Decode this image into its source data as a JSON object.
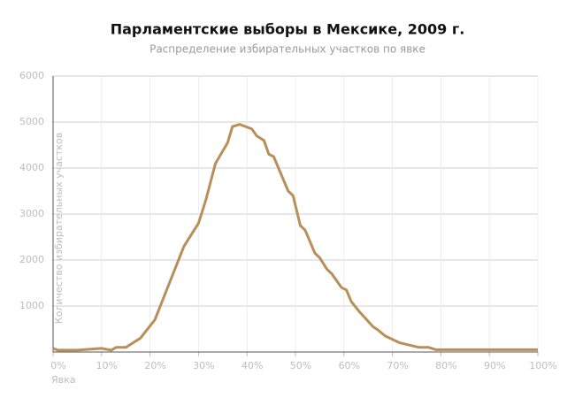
{
  "chart_data": {
    "type": "line",
    "title": "Парламентские выборы в Мексике, 2009 г.",
    "subtitle": "Распределение избирательных участков по явке",
    "x_label": "Явка",
    "y_label": "Количество избирательных участков",
    "x": [
      0,
      1,
      5,
      10,
      12,
      13,
      15,
      18,
      21,
      24,
      27,
      30,
      31.5,
      33.5,
      36,
      37,
      38.5,
      41,
      42,
      43.5,
      44.5,
      45.5,
      48.5,
      49.5,
      51,
      52,
      54,
      55,
      56.5,
      57.5,
      59.5,
      60.5,
      61.5,
      63,
      66,
      67,
      68.5,
      71.5,
      73.5,
      75.5,
      77.5,
      79,
      83,
      100
    ],
    "series": [
      {
        "name": "Количество избирательных участков",
        "color": "#b98f59",
        "values": [
          80,
          40,
          40,
          80,
          40,
          100,
          100,
          300,
          700,
          1500,
          2300,
          2800,
          3300,
          4100,
          4550,
          4900,
          4950,
          4850,
          4700,
          4600,
          4300,
          4250,
          3500,
          3400,
          2750,
          2650,
          2150,
          2050,
          1800,
          1700,
          1400,
          1350,
          1100,
          900,
          550,
          480,
          350,
          200,
          150,
          100,
          100,
          50,
          50,
          50
        ]
      }
    ],
    "xlim": [
      0,
      100
    ],
    "xticks": [
      {
        "value": 0,
        "label": "0%"
      },
      {
        "value": 10,
        "label": "10%"
      },
      {
        "value": 20,
        "label": "20%"
      },
      {
        "value": 30,
        "label": "30%"
      },
      {
        "value": 40,
        "label": "40%"
      },
      {
        "value": 50,
        "label": "50%"
      },
      {
        "value": 60,
        "label": "60%"
      },
      {
        "value": 70,
        "label": "70%"
      },
      {
        "value": 80,
        "label": "80%"
      },
      {
        "value": 90,
        "label": "90%"
      },
      {
        "value": 100,
        "label": "100%"
      }
    ],
    "ylim": [
      0,
      6000
    ],
    "yticks": [
      1000,
      2000,
      3000,
      4000,
      5000,
      6000
    ],
    "grid": true
  }
}
